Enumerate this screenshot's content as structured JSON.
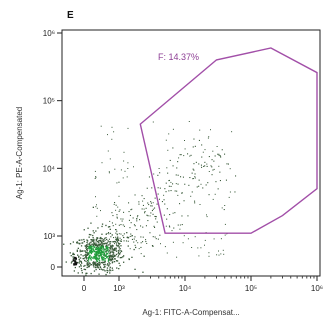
{
  "chart_data": {
    "type": "scatter",
    "panel_label": "E",
    "xlabel": "Ag-1: FITC-A-Compensat...",
    "ylabel": "Ag-1: PE-A-Compensated",
    "x_scale": "biexponential",
    "y_scale": "biexponential",
    "x_ticks": [
      {
        "value": 0,
        "label": "0"
      },
      {
        "value": 1000,
        "label": "10³"
      },
      {
        "value": 10000,
        "label": "10⁴"
      },
      {
        "value": 100000,
        "label": "10⁵"
      },
      {
        "value": 1000000,
        "label": "10⁶"
      }
    ],
    "y_ticks": [
      {
        "value": 0,
        "label": "0"
      },
      {
        "value": 1000,
        "label": "10³"
      },
      {
        "value": 10000,
        "label": "10⁴"
      },
      {
        "value": 100000,
        "label": "10⁵"
      },
      {
        "value": 1000000,
        "label": "10⁶"
      }
    ],
    "gate": {
      "name": "F",
      "percent": "14.37%",
      "label": "F: 14.37%",
      "color": "#a24fa8",
      "vertices": [
        {
          "x": 2100,
          "y": 45000
        },
        {
          "x": 30000,
          "y": 400000
        },
        {
          "x": 200000,
          "y": 600000
        },
        {
          "x": 1000000,
          "y": 260000
        },
        {
          "x": 1000000,
          "y": 5000
        },
        {
          "x": 300000,
          "y": 2000
        },
        {
          "x": 100000,
          "y": 1100
        },
        {
          "x": 5000,
          "y": 1100
        }
      ]
    },
    "grid": false,
    "legend": "none",
    "point_color": "#3a5a3a",
    "dense_color": "#1f9d3a"
  }
}
